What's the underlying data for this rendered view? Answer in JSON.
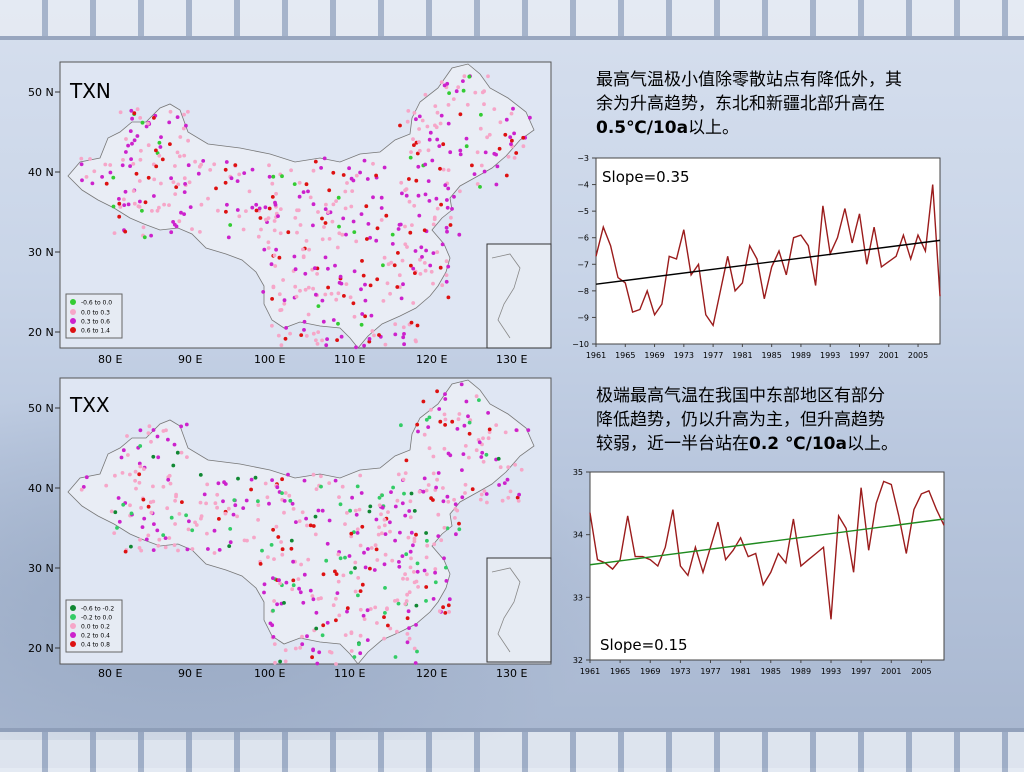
{
  "maps": [
    {
      "title": "TXN",
      "y_ticks": [
        "50 N",
        "40 N",
        "30 N",
        "20 N"
      ],
      "x_ticks": [
        "80 E",
        "90 E",
        "100 E",
        "110 E",
        "120 E",
        "130 E"
      ],
      "legend": [
        {
          "label": "-0.6  to  0.0",
          "color": "#33cc33"
        },
        {
          "label": "0.0  to  0.3",
          "color": "#f6a6c8"
        },
        {
          "label": "0.3  to  0.6",
          "color": "#cc22cc"
        },
        {
          "label": "0.6  to  1.4",
          "color": "#dd1111"
        }
      ]
    },
    {
      "title": "TXX",
      "y_ticks": [
        "50 N",
        "40 N",
        "30 N",
        "20 N"
      ],
      "x_ticks": [
        "80 E",
        "90 E",
        "100 E",
        "110 E",
        "120 E",
        "130 E"
      ],
      "legend": [
        {
          "label": "-0.6  to  -0.2",
          "color": "#118833"
        },
        {
          "label": "-0.2  to  0.0",
          "color": "#33cc66"
        },
        {
          "label": "0.0  to  0.2",
          "color": "#f6a6c8"
        },
        {
          "label": "0.2  to  0.4",
          "color": "#cc22cc"
        },
        {
          "label": "0.4  to  0.8",
          "color": "#dd1111"
        }
      ]
    }
  ],
  "text1": {
    "line1": "最高气温极小值除零散站点有降低外，其",
    "line2": "余为升高趋势，东北和新疆北部升高在",
    "line3_bold": "0.5℃/10a",
    "line3_rest": "以上。"
  },
  "text2": {
    "line1": "极端最高气温在我国中东部地区有部分",
    "line2": "降低趋势，仍以升高为主，但升高趋势",
    "line3_a": "较弱，近一半台站在",
    "line3_bold": "0.2 ℃/10a",
    "line3_rest": "以上。"
  },
  "chart_data": [
    {
      "type": "line",
      "annotation": "Slope=0.35",
      "x": [
        1961,
        1962,
        1963,
        1964,
        1965,
        1966,
        1967,
        1968,
        1969,
        1970,
        1971,
        1972,
        1973,
        1974,
        1975,
        1976,
        1977,
        1978,
        1979,
        1980,
        1981,
        1982,
        1983,
        1984,
        1985,
        1986,
        1987,
        1988,
        1989,
        1990,
        1991,
        1992,
        1993,
        1994,
        1995,
        1996,
        1997,
        1998,
        1999,
        2000,
        2001,
        2002,
        2003,
        2004,
        2005,
        2006,
        2007,
        2008
      ],
      "series": [
        {
          "color": "#9b1c1c",
          "values": [
            -6.7,
            -5.6,
            -6.3,
            -7.5,
            -7.7,
            -8.8,
            -8.7,
            -8.0,
            -8.9,
            -8.5,
            -6.7,
            -6.8,
            -5.7,
            -7.4,
            -7.0,
            -8.9,
            -9.3,
            -8.0,
            -6.7,
            -8.0,
            -7.7,
            -6.3,
            -6.8,
            -8.3,
            -7.1,
            -6.5,
            -7.4,
            -6.0,
            -5.9,
            -6.3,
            -7.8,
            -4.8,
            -6.6,
            -6.0,
            -4.9,
            -6.2,
            -5.1,
            -7.0,
            -5.6,
            -7.1,
            -6.9,
            -6.7,
            -5.9,
            -6.8,
            -5.9,
            -6.5,
            -4.0,
            -8.2
          ]
        },
        {
          "name": "trend",
          "color": "#000000",
          "values_from": [
            1961,
            -7.75
          ],
          "values_to": [
            2008,
            -6.1
          ]
        }
      ],
      "yticks": [
        -3,
        -4,
        -5,
        -6,
        -7,
        -8,
        -9,
        -10
      ],
      "xticks": [
        1961,
        1965,
        1969,
        1973,
        1977,
        1981,
        1985,
        1989,
        1993,
        1997,
        2001,
        2005
      ],
      "ylim": [
        -10,
        -3
      ]
    },
    {
      "type": "line",
      "annotation": "Slope=0.15",
      "x": [
        1961,
        1962,
        1963,
        1964,
        1965,
        1966,
        1967,
        1968,
        1969,
        1970,
        1971,
        1972,
        1973,
        1974,
        1975,
        1976,
        1977,
        1978,
        1979,
        1980,
        1981,
        1982,
        1983,
        1984,
        1985,
        1986,
        1987,
        1988,
        1989,
        1990,
        1991,
        1992,
        1993,
        1994,
        1995,
        1996,
        1997,
        1998,
        1999,
        2000,
        2001,
        2002,
        2003,
        2004,
        2005,
        2006,
        2007,
        2008
      ],
      "series": [
        {
          "color": "#9b1c1c",
          "values": [
            34.35,
            33.6,
            33.55,
            33.45,
            33.6,
            34.3,
            33.65,
            33.65,
            33.6,
            33.5,
            33.8,
            34.4,
            33.5,
            33.35,
            33.8,
            33.4,
            33.8,
            34.2,
            33.6,
            33.75,
            33.95,
            33.65,
            33.7,
            33.2,
            33.4,
            33.7,
            33.55,
            34.25,
            33.5,
            33.6,
            33.7,
            33.8,
            32.65,
            34.3,
            34.1,
            33.4,
            34.75,
            33.75,
            34.5,
            34.85,
            34.8,
            34.3,
            33.7,
            34.4,
            34.65,
            34.7,
            34.4,
            34.15
          ]
        },
        {
          "name": "trend",
          "color": "#1f8a1f",
          "values_from": [
            1961,
            33.52
          ],
          "values_to": [
            2008,
            34.25
          ]
        }
      ],
      "yticks": [
        35,
        34,
        33,
        32
      ],
      "xticks": [
        1961,
        1965,
        1969,
        1973,
        1977,
        1981,
        1985,
        1989,
        1993,
        1997,
        2001,
        2005
      ],
      "ylim": [
        32,
        35
      ]
    }
  ]
}
